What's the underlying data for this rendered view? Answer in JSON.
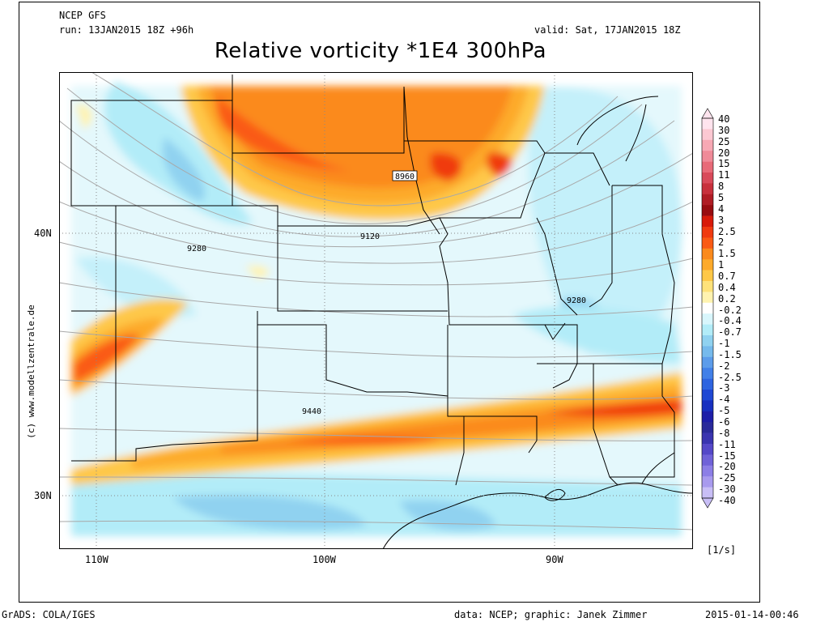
{
  "header": {
    "model": "NCEP GFS",
    "run": "run: 13JAN2015 18Z +96h",
    "valid": "valid: Sat, 17JAN2015 18Z",
    "title": "Relative vorticity *1E4 300hPa"
  },
  "side_credit": "(c) www.modellzentrale.de",
  "footer": {
    "left": "GrADS: COLA/IGES",
    "center": "data: NCEP; graphic: Janek Zimmer",
    "right": "2015-01-14-00:46"
  },
  "map": {
    "lat_labels": [
      "40N",
      "30N"
    ],
    "lon_labels": [
      "110W",
      "100W",
      "90W"
    ],
    "contour_labels": [
      "8960",
      "9120",
      "9280",
      "9280",
      "9440"
    ]
  },
  "colorbar": {
    "unit": "[1/s]",
    "levels": [
      "40",
      "30",
      "25",
      "20",
      "15",
      "11",
      "8",
      "5",
      "4",
      "3",
      "2.5",
      "2",
      "1.5",
      "1",
      "0.7",
      "0.4",
      "0.2",
      "-0.2",
      "-0.4",
      "-0.7",
      "-1",
      "-1.5",
      "-2",
      "-2.5",
      "-3",
      "-4",
      "-5",
      "-6",
      "-8",
      "-11",
      "-15",
      "-20",
      "-25",
      "-30",
      "-40"
    ],
    "colors": [
      "#ffe4ee",
      "#fcc8d2",
      "#f7a8b4",
      "#f08a98",
      "#e86a78",
      "#d94a5a",
      "#c8303c",
      "#b01c24",
      "#980c10",
      "#d81a0a",
      "#f03a10",
      "#fa5a14",
      "#fb8a1c",
      "#fdaa2a",
      "#fec848",
      "#fee27a",
      "#fff3b0",
      "#ffffff",
      "#d8f6fc",
      "#b2ecf8",
      "#90d2f0",
      "#76baec",
      "#5c9cea",
      "#4280e8",
      "#2e64e0",
      "#1f48d4",
      "#1830c0",
      "#1e1ea8",
      "#2a2a9a",
      "#3a34b0",
      "#5548c8",
      "#7062d8",
      "#8c7ee6",
      "#a89aee",
      "#c8bef6"
    ]
  }
}
